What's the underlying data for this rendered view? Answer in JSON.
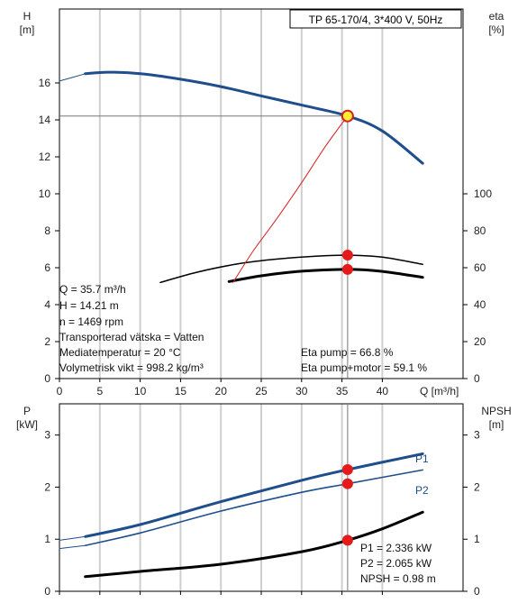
{
  "chart_data": [
    {
      "type": "line",
      "title": "TP 65-170/4, 3*400 V, 50Hz",
      "xlabel": "Q [m³/h]",
      "x_unit_label": "Q [m³/h]",
      "ylabel_left": [
        "H",
        "[m]"
      ],
      "ylabel_right": [
        "eta",
        "[%]"
      ],
      "xlim": [
        0,
        50
      ],
      "ylim_left": [
        0,
        20
      ],
      "ylim_right": [
        0,
        200
      ],
      "x_ticks": [
        "0",
        "5",
        "10",
        "15",
        "20",
        "25",
        "30",
        "35",
        "40"
      ],
      "y_ticks_left": [
        "0",
        "2",
        "4",
        "6",
        "8",
        "10",
        "12",
        "14",
        "16"
      ],
      "y_ticks_right": [
        "0",
        "20",
        "40",
        "60",
        "80",
        "100"
      ],
      "grid": true,
      "series": [
        {
          "id": "H",
          "axis": "left",
          "color": "#1f4e8c",
          "width": 3,
          "x": [
            3.2,
            6.0,
            10.0,
            15.0,
            20.0,
            25.0,
            30.0,
            35.7,
            40.0,
            45.0
          ],
          "y": [
            16.5,
            16.58,
            16.5,
            16.2,
            15.8,
            15.3,
            14.8,
            14.21,
            13.4,
            11.65
          ]
        },
        {
          "id": "H_ext",
          "axis": "left",
          "color": "#1f4e8c",
          "width": 1,
          "x": [
            0,
            3.2
          ],
          "y": [
            16.1,
            16.5
          ]
        },
        {
          "id": "eta_pump",
          "axis": "right",
          "color": "#000000",
          "width": 1.5,
          "x": [
            12.5,
            17.0,
            22.0,
            27.0,
            32.0,
            35.7,
            40.0,
            45.0
          ],
          "y": [
            52.0,
            57.5,
            62.0,
            64.7,
            66.3,
            66.8,
            65.7,
            61.8
          ]
        },
        {
          "id": "eta_pump_motor",
          "axis": "right",
          "color": "#000000",
          "width": 3,
          "x": [
            21.0,
            25.0,
            30.0,
            35.7,
            40.0,
            45.0
          ],
          "y": [
            52.5,
            55.6,
            58.1,
            59.1,
            58.0,
            54.8
          ]
        },
        {
          "id": "system_curve",
          "axis": "left",
          "color": "#d62020",
          "width": 1,
          "x": [
            21.5,
            24.0,
            27.0,
            30.0,
            33.0,
            35.7
          ],
          "y": [
            5.2,
            6.9,
            8.7,
            10.6,
            12.6,
            14.21
          ]
        }
      ],
      "duty_point": {
        "x": 35.7,
        "y": 14.21
      },
      "eta_markers": [
        {
          "x": 35.7,
          "y": 66.8
        },
        {
          "x": 35.7,
          "y": 59.1
        }
      ],
      "info_lines": [
        "Q = 35.7 m³/h",
        "H = 14.21 m",
        "n = 1469 rpm",
        "Transporterad vätska = Vatten",
        "Mediatemperatur = 20 °C",
        "Volymetrisk vikt = 998.2 kg/m³"
      ],
      "eta_lines": [
        "Eta pump = 66.8 %",
        "Eta pump+motor = 59.1 %"
      ]
    },
    {
      "type": "line",
      "ylabel_left": [
        "P",
        "[kW]"
      ],
      "ylabel_right": [
        "NPSH",
        "[m]"
      ],
      "xlim": [
        0,
        50
      ],
      "ylim_left": [
        0,
        3.6
      ],
      "ylim_right": [
        0,
        3.6
      ],
      "y_ticks_left": [
        "0",
        "1",
        "2",
        "3"
      ],
      "y_ticks_right": [
        "0",
        "1",
        "2",
        "3"
      ],
      "grid": true,
      "series": [
        {
          "id": "P1",
          "name": "P1",
          "axis": "left",
          "color": "#1f4e8c",
          "width": 3,
          "x": [
            3.2,
            10.0,
            20.0,
            30.0,
            35.7,
            45.0
          ],
          "y": [
            1.05,
            1.28,
            1.72,
            2.13,
            2.336,
            2.64
          ]
        },
        {
          "id": "P1_ext",
          "axis": "left",
          "color": "#1f4e8c",
          "width": 1,
          "x": [
            0,
            3.2
          ],
          "y": [
            0.98,
            1.05
          ]
        },
        {
          "id": "P2",
          "name": "P2",
          "axis": "left",
          "color": "#1f4e8c",
          "width": 1.6,
          "x": [
            3.2,
            10.0,
            20.0,
            30.0,
            35.7,
            45.0
          ],
          "y": [
            0.88,
            1.12,
            1.54,
            1.9,
            2.065,
            2.33
          ]
        },
        {
          "id": "P2_ext",
          "axis": "left",
          "color": "#1f4e8c",
          "width": 1,
          "x": [
            0,
            3.2
          ],
          "y": [
            0.82,
            0.88
          ]
        },
        {
          "id": "NPSH",
          "axis": "right",
          "color": "#000000",
          "width": 3,
          "x": [
            3.2,
            10.0,
            20.0,
            30.0,
            35.7,
            40.0,
            45.0
          ],
          "y": [
            0.28,
            0.38,
            0.52,
            0.76,
            0.98,
            1.2,
            1.52
          ]
        }
      ],
      "markers": [
        {
          "x": 35.7,
          "y": 2.336
        },
        {
          "x": 35.7,
          "y": 2.065
        },
        {
          "x": 35.7,
          "y": 0.98
        }
      ],
      "series_labels": [
        "P1",
        "P2"
      ],
      "info_lines": [
        "P1 = 2.336 kW",
        "P2 = 2.065 kW",
        "NPSH = 0.98 m"
      ]
    }
  ]
}
